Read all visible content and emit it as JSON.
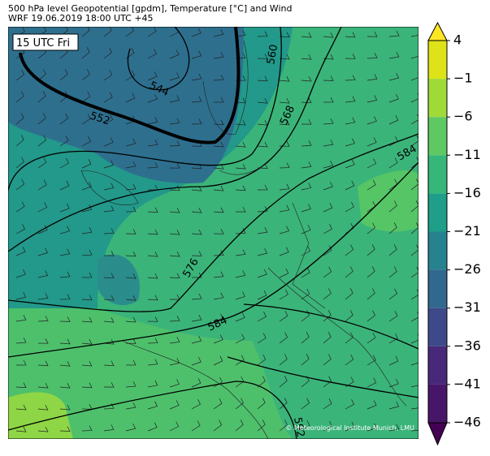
{
  "header": {
    "title": "500 hPa level Geopotential [gpdm], Temperature [°C] and Wind",
    "subtitle": "WRF 19.06.2019 18:00 UTC +45"
  },
  "map": {
    "time_label": "15 UTC Fri",
    "contour_labels": [
      "544",
      "552",
      "560",
      "568",
      "576",
      "584",
      "584",
      "592"
    ],
    "credit": "© Meteorological Institute Munich, LMU"
  },
  "colorbar": {
    "ticks": [
      {
        "value": 4,
        "label": "4"
      },
      {
        "value": -1,
        "label": "−1"
      },
      {
        "value": -6,
        "label": "−6"
      },
      {
        "value": -11,
        "label": "−11"
      },
      {
        "value": -16,
        "label": "−16"
      },
      {
        "value": -21,
        "label": "−21"
      },
      {
        "value": -26,
        "label": "−26"
      },
      {
        "value": -31,
        "label": "−31"
      },
      {
        "value": -36,
        "label": "−36"
      },
      {
        "value": -41,
        "label": "−41"
      },
      {
        "value": -46,
        "label": "−46"
      }
    ],
    "colors": [
      "#fde725",
      "#dde318",
      "#a0da39",
      "#5ec962",
      "#35b779",
      "#1f9e89",
      "#26828e",
      "#31688e",
      "#3e4989",
      "#482878",
      "#481668",
      "#440154"
    ]
  }
}
